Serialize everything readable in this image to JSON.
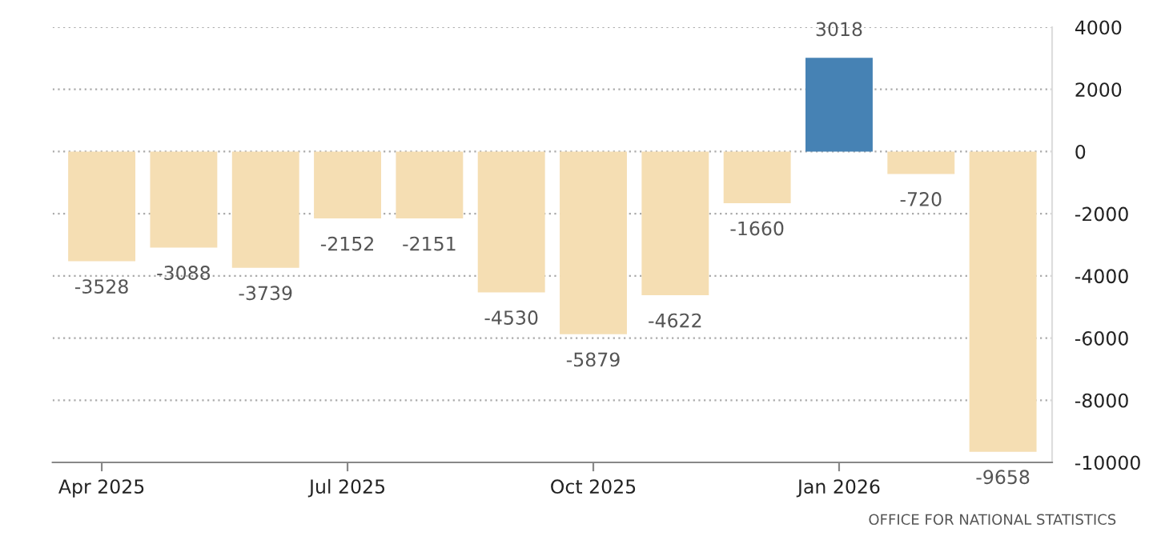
{
  "chart_data": {
    "type": "bar",
    "categories": [
      "Apr 2025",
      null,
      null,
      "Jul 2025",
      null,
      null,
      "Oct 2025",
      null,
      null,
      "Jan 2026",
      null,
      null
    ],
    "values": [
      -3528,
      -3088,
      -3739,
      -2152,
      -2151,
      -4530,
      -5879,
      -4622,
      -1660,
      3018,
      -720,
      -9658
    ],
    "colors": [
      "#f5deb3",
      "#f5deb3",
      "#f5deb3",
      "#f5deb3",
      "#f5deb3",
      "#f5deb3",
      "#f5deb3",
      "#f5deb3",
      "#f5deb3",
      "#4682b4",
      "#f5deb3",
      "#f5deb3"
    ],
    "data_labels": true,
    "ylim": [
      -10000,
      4000
    ],
    "yticks": [
      -10000,
      -8000,
      -6000,
      -4000,
      -2000,
      0,
      2000,
      4000
    ],
    "grid": "y",
    "legend": false,
    "annotations": [
      "OFFICE FOR NATIONAL STATISTICS"
    ]
  }
}
